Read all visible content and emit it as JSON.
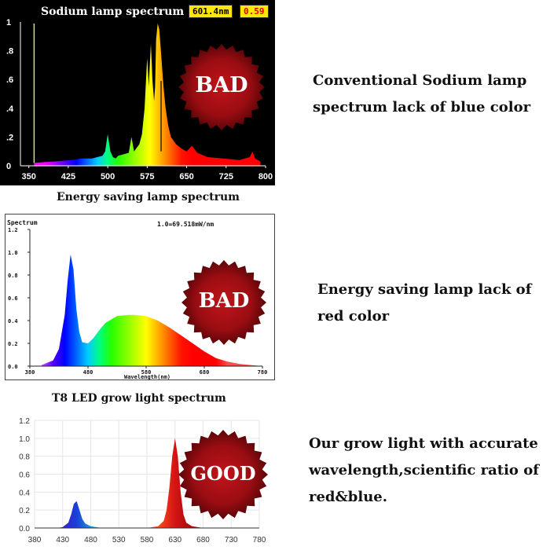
{
  "colors": {
    "panel1_bg": "#000000",
    "seal_red": "#c0141a",
    "seal_dark": "#5a0508",
    "readout_bg": "#ffe800",
    "led_red": "#d31414",
    "led_blue": "#1a3fd8"
  },
  "panels": [
    {
      "caption": "Sodium lamp spectrum",
      "readout_wavelength": "601.4nm",
      "readout_value": "0.59",
      "badge": "BAD",
      "description_lines": [
        "Conventional Sodium lamp",
        "spectrum lack of blue color"
      ]
    },
    {
      "caption": "Energy saving lamp spectrum",
      "header_left": "Spectrum",
      "header_right": "1.0=69.518mW/nm",
      "badge": "BAD",
      "description_lines": [
        "Energy saving lamp lack of",
        "red color"
      ]
    },
    {
      "caption": "T8 LED grow light spectrum",
      "badge": "GOOD",
      "description_lines": [
        "Our grow light  with accurate",
        "wavelength,scientific ratio of",
        "red&blue."
      ]
    }
  ],
  "chart_data": [
    {
      "type": "area",
      "title": "Sodium lamp spectrum",
      "xlabel": "",
      "ylabel": "",
      "xlim": [
        340,
        800
      ],
      "ylim": [
        0,
        1
      ],
      "x_ticks": [
        350,
        425,
        500,
        575,
        650,
        725,
        800
      ],
      "x_tick_labels": [
        "350",
        "425",
        "500",
        "575",
        "650",
        "725",
        "800"
      ],
      "y_ticks": [
        0,
        0.2,
        0.4,
        0.6,
        0.8,
        1
      ],
      "y_tick_labels": [
        "0",
        ".2",
        ".4",
        ".6",
        ".8",
        "1"
      ],
      "grid": false,
      "x": [
        360,
        400,
        430,
        450,
        470,
        490,
        495,
        500,
        505,
        510,
        515,
        520,
        540,
        545,
        550,
        560,
        565,
        570,
        575,
        578,
        582,
        585,
        588,
        590,
        592,
        595,
        598,
        600,
        603,
        606,
        610,
        615,
        620,
        630,
        640,
        650,
        660,
        670,
        690,
        720,
        750,
        770,
        775,
        780,
        790
      ],
      "y": [
        0.02,
        0.03,
        0.04,
        0.05,
        0.05,
        0.07,
        0.1,
        0.22,
        0.1,
        0.06,
        0.05,
        0.07,
        0.09,
        0.2,
        0.1,
        0.15,
        0.22,
        0.4,
        0.75,
        0.55,
        0.85,
        0.6,
        0.45,
        0.55,
        0.88,
        0.99,
        0.95,
        0.85,
        0.7,
        0.55,
        0.4,
        0.28,
        0.2,
        0.15,
        0.12,
        0.1,
        0.14,
        0.09,
        0.06,
        0.05,
        0.04,
        0.06,
        0.1,
        0.05,
        0.03
      ]
    },
    {
      "type": "area",
      "title": "",
      "xlabel": "Wavelength(nm)",
      "ylabel": "",
      "xlim": [
        380,
        780
      ],
      "ylim": [
        0,
        1.2
      ],
      "x_ticks": [
        380,
        480,
        580,
        680,
        780
      ],
      "x_tick_labels": [
        "380",
        "480",
        "580",
        "680",
        "780"
      ],
      "y_ticks": [
        0,
        0.2,
        0.4,
        0.6,
        0.8,
        1.0,
        1.2
      ],
      "y_tick_labels": [
        "0.0",
        "0.2",
        "0.4",
        "0.6",
        "0.8",
        "1.0",
        "1.2"
      ],
      "grid": false,
      "x": [
        400,
        420,
        430,
        440,
        445,
        450,
        455,
        460,
        465,
        470,
        480,
        490,
        500,
        510,
        530,
        550,
        560,
        580,
        600,
        620,
        640,
        660,
        680,
        700,
        720,
        740,
        760,
        780
      ],
      "y": [
        0.01,
        0.05,
        0.15,
        0.45,
        0.75,
        0.98,
        0.85,
        0.5,
        0.3,
        0.21,
        0.2,
        0.25,
        0.32,
        0.38,
        0.44,
        0.45,
        0.45,
        0.44,
        0.4,
        0.34,
        0.27,
        0.2,
        0.13,
        0.07,
        0.04,
        0.02,
        0.01,
        0.0
      ]
    },
    {
      "type": "area",
      "title": "",
      "xlabel": "",
      "ylabel": "",
      "xlim": [
        380,
        780
      ],
      "ylim": [
        0,
        1.2
      ],
      "x_ticks": [
        380,
        430,
        480,
        530,
        580,
        630,
        680,
        730,
        780
      ],
      "x_tick_labels": [
        "380",
        "430",
        "480",
        "530",
        "580",
        "630",
        "680",
        "730",
        "780"
      ],
      "y_ticks": [
        0,
        0.2,
        0.4,
        0.6,
        0.8,
        1.0,
        1.2
      ],
      "y_tick_labels": [
        "0.0",
        "0.2",
        "0.4",
        "0.6",
        "0.8",
        "1.0",
        "1.2"
      ],
      "grid": true,
      "series": [
        {
          "color": "blue",
          "x": [
            420,
            430,
            440,
            445,
            450,
            455,
            460,
            465,
            470,
            480,
            490,
            500
          ],
          "y": [
            0.0,
            0.01,
            0.06,
            0.15,
            0.27,
            0.3,
            0.2,
            0.1,
            0.05,
            0.02,
            0.01,
            0.0
          ]
        },
        {
          "color": "red",
          "x": [
            580,
            600,
            610,
            615,
            620,
            625,
            630,
            635,
            640,
            645,
            650,
            660,
            680,
            700
          ],
          "y": [
            0.0,
            0.02,
            0.08,
            0.2,
            0.45,
            0.8,
            1.0,
            0.8,
            0.4,
            0.15,
            0.06,
            0.02,
            0.0,
            0.0
          ]
        }
      ]
    }
  ]
}
